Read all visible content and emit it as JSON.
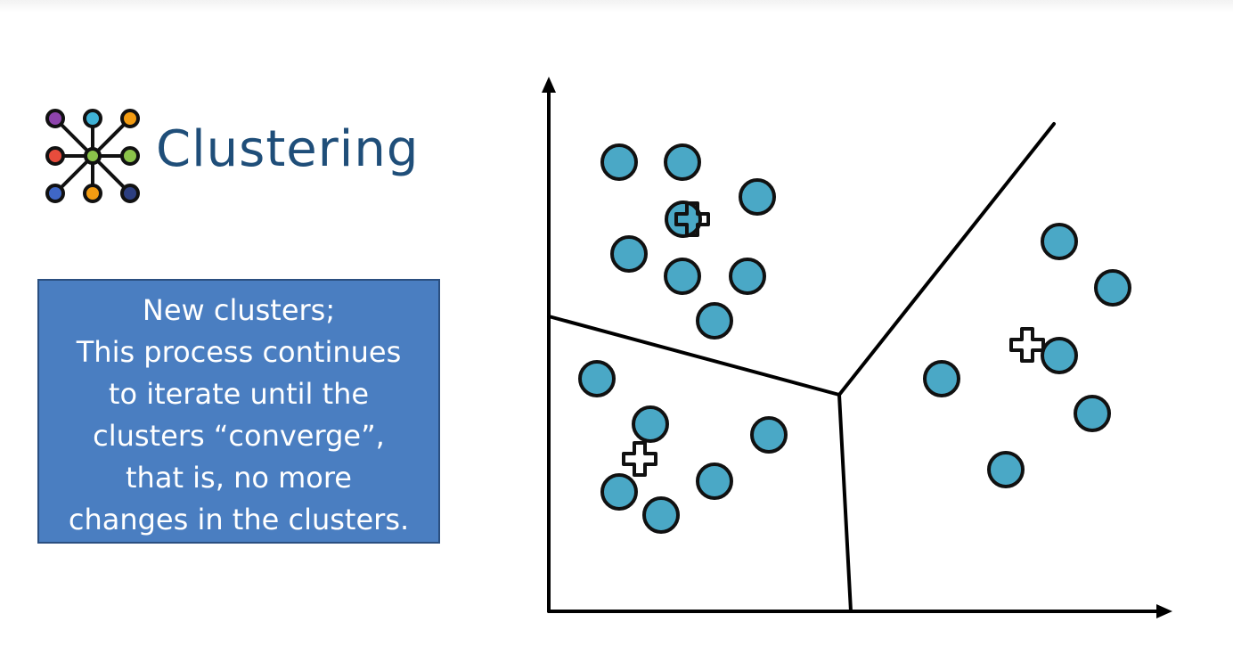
{
  "slide": {
    "title": "Clustering",
    "lines": [
      "New clusters;",
      "This process continues",
      "to iterate until the",
      "clusters “converge”,",
      "that is, no more",
      "changes in the clusters."
    ]
  },
  "colors": {
    "title": "#1f4e79",
    "box_fill": "#4a7ec1",
    "box_border": "#2b4f80",
    "point_fill": "#4aa8c6",
    "logo_nodes": [
      "#8e44ad",
      "#3fb2d6",
      "#f39c12",
      "#e74c3c",
      "#8bc34a",
      "#3f67c6",
      "#f39c12",
      "#2c3e80"
    ]
  },
  "icons": {
    "logo": "network-cluster-icon",
    "centroid": "plus-outline-icon"
  }
}
